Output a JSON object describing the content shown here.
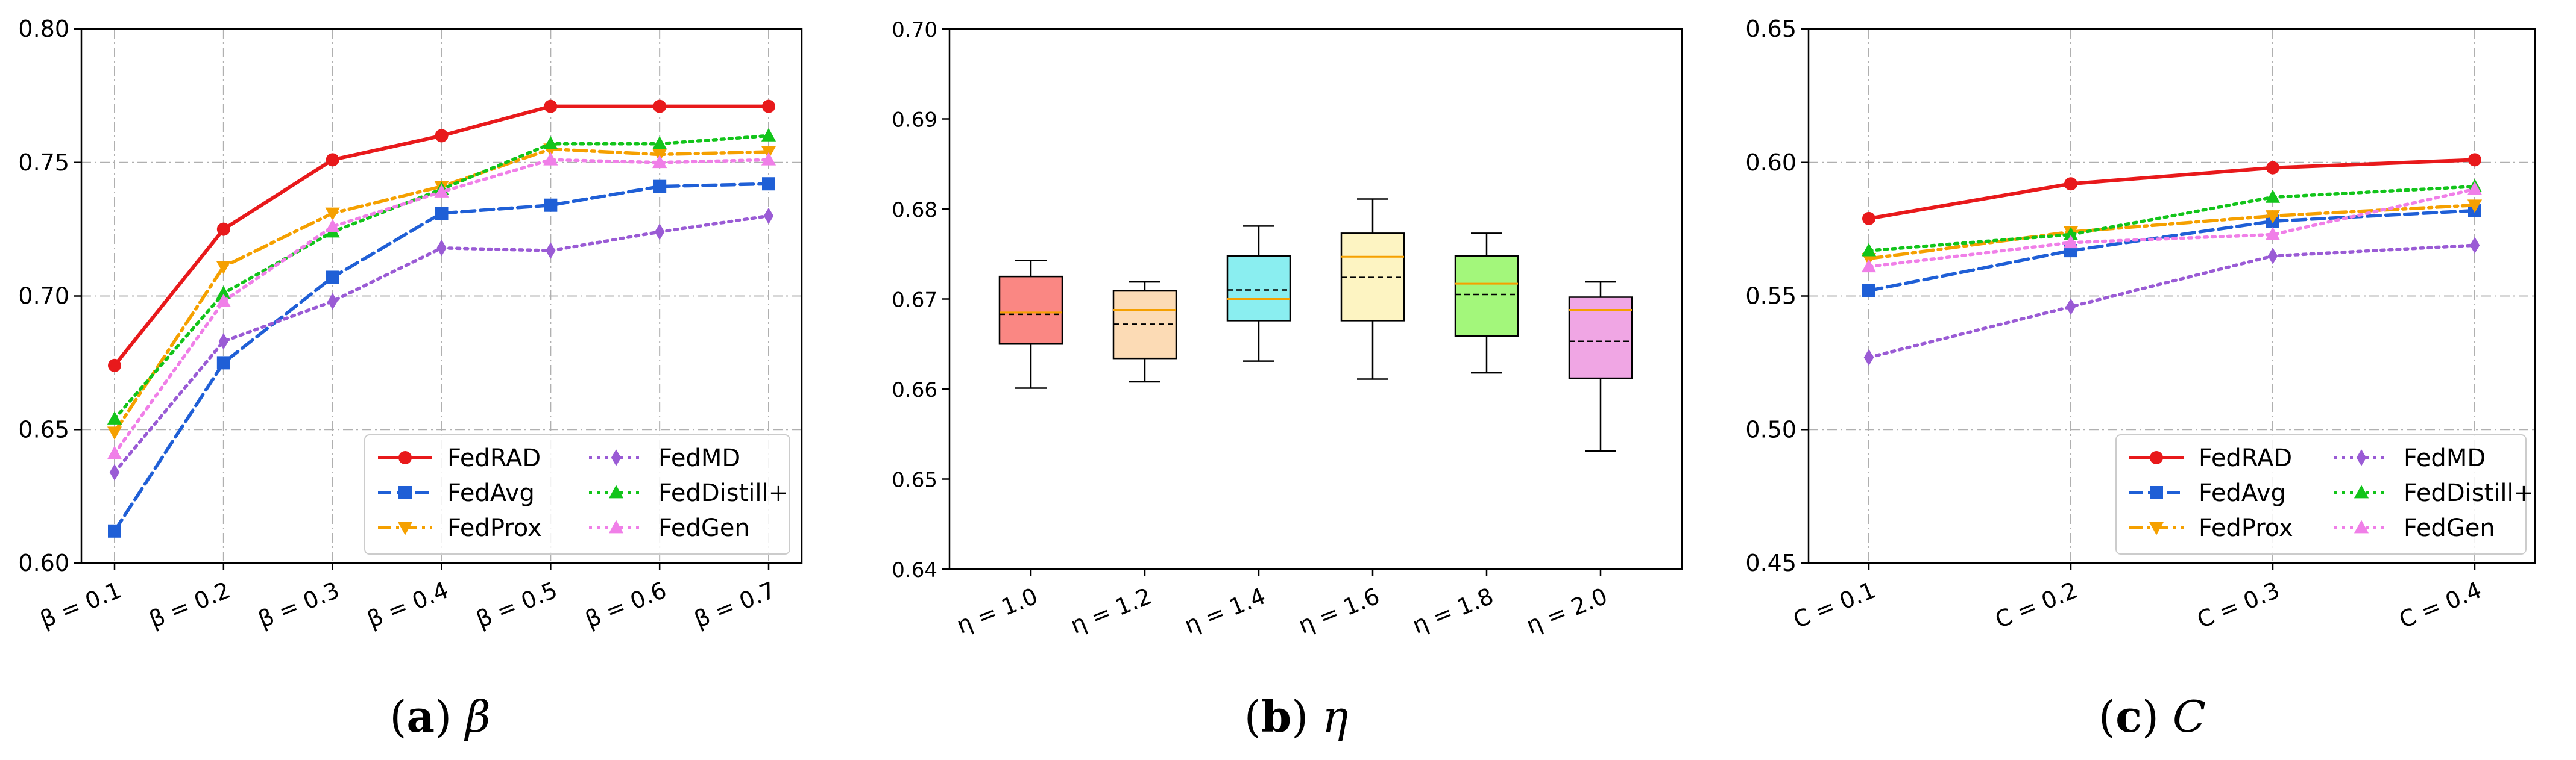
{
  "chart_data": [
    {
      "type": "line",
      "caption": {
        "letter": "a",
        "symbol": "β"
      },
      "categories": [
        "β = 0.1",
        "β = 0.2",
        "β = 0.3",
        "β = 0.4",
        "β = 0.5",
        "β = 0.6",
        "β = 0.7"
      ],
      "ylim": [
        0.6,
        0.8
      ],
      "yticks": [
        "0.60",
        "0.65",
        "0.70",
        "0.75",
        "0.80"
      ],
      "grid": true,
      "legend_position": "lower-right",
      "series": [
        {
          "name": "FedRAD",
          "color": "#e8191b",
          "marker": "circle",
          "dash": "solid",
          "values": [
            0.674,
            0.725,
            0.751,
            0.76,
            0.771,
            0.771,
            0.771
          ]
        },
        {
          "name": "FedAvg",
          "color": "#1f5fd6",
          "marker": "square",
          "dash": "dashed",
          "values": [
            0.612,
            0.675,
            0.707,
            0.731,
            0.734,
            0.741,
            0.742
          ]
        },
        {
          "name": "FedProx",
          "color": "#f5a000",
          "marker": "triangle-down",
          "dash": "dashdot",
          "values": [
            0.649,
            0.711,
            0.731,
            0.741,
            0.755,
            0.753,
            0.754
          ]
        },
        {
          "name": "FedMD",
          "color": "#9a5bd5",
          "marker": "diamond",
          "dash": "dotted",
          "values": [
            0.634,
            0.683,
            0.698,
            0.718,
            0.717,
            0.724,
            0.73
          ]
        },
        {
          "name": "FedDistill+",
          "color": "#12c41a",
          "marker": "triangle-up",
          "dash": "dotted",
          "values": [
            0.654,
            0.701,
            0.724,
            0.74,
            0.757,
            0.757,
            0.76
          ]
        },
        {
          "name": "FedGen",
          "color": "#f07fe8",
          "marker": "triangle-up",
          "dash": "dotted",
          "values": [
            0.641,
            0.698,
            0.726,
            0.739,
            0.751,
            0.75,
            0.751
          ]
        }
      ]
    },
    {
      "type": "box",
      "caption": {
        "letter": "b",
        "symbol": "η"
      },
      "categories": [
        "η = 1.0",
        "η = 1.2",
        "η = 1.4",
        "η = 1.6",
        "η = 1.8",
        "η = 2.0"
      ],
      "ylim": [
        0.64,
        0.7
      ],
      "yticks": [
        "0.64",
        "0.65",
        "0.66",
        "0.67",
        "0.68",
        "0.69",
        "0.70"
      ],
      "grid": false,
      "boxes": [
        {
          "label": "η = 1.0",
          "color": "#fa8783",
          "whisker_low": 0.6601,
          "q1": 0.665,
          "median": 0.6685,
          "mean": 0.6683,
          "q3": 0.6725,
          "whisker_high": 0.6743
        },
        {
          "label": "η = 1.2",
          "color": "#fcdbb5",
          "whisker_low": 0.6608,
          "q1": 0.6634,
          "median": 0.6688,
          "mean": 0.6672,
          "q3": 0.6709,
          "whisker_high": 0.6719
        },
        {
          "label": "η = 1.4",
          "color": "#8aeef0",
          "whisker_low": 0.6631,
          "q1": 0.6676,
          "median": 0.67,
          "mean": 0.671,
          "q3": 0.6748,
          "whisker_high": 0.6781
        },
        {
          "label": "η = 1.6",
          "color": "#fdf4c2",
          "whisker_low": 0.6611,
          "q1": 0.6676,
          "median": 0.6747,
          "mean": 0.6724,
          "q3": 0.6773,
          "whisker_high": 0.6811
        },
        {
          "label": "η = 1.8",
          "color": "#a3f77b",
          "whisker_low": 0.6618,
          "q1": 0.6659,
          "median": 0.6717,
          "mean": 0.6705,
          "q3": 0.6748,
          "whisker_high": 0.6773
        },
        {
          "label": "η = 2.0",
          "color": "#f0a6e4",
          "whisker_low": 0.6531,
          "q1": 0.6612,
          "median": 0.6688,
          "mean": 0.6653,
          "q3": 0.6702,
          "whisker_high": 0.6719
        }
      ],
      "median_color": "#f5a000",
      "mean_line": "dashed-black"
    },
    {
      "type": "line",
      "caption": {
        "letter": "c",
        "symbol": "C"
      },
      "categories": [
        "C = 0.1",
        "C = 0.2",
        "C = 0.3",
        "C = 0.4"
      ],
      "ylim": [
        0.45,
        0.65
      ],
      "yticks": [
        "0.45",
        "0.50",
        "0.55",
        "0.60",
        "0.65"
      ],
      "grid": true,
      "legend_position": "lower-right",
      "series": [
        {
          "name": "FedRAD",
          "color": "#e8191b",
          "marker": "circle",
          "dash": "solid",
          "values": [
            0.579,
            0.592,
            0.598,
            0.601
          ]
        },
        {
          "name": "FedAvg",
          "color": "#1f5fd6",
          "marker": "square",
          "dash": "dashed",
          "values": [
            0.552,
            0.567,
            0.578,
            0.582
          ]
        },
        {
          "name": "FedProx",
          "color": "#f5a000",
          "marker": "triangle-down",
          "dash": "dashdot",
          "values": [
            0.564,
            0.574,
            0.58,
            0.584
          ]
        },
        {
          "name": "FedMD",
          "color": "#9a5bd5",
          "marker": "diamond",
          "dash": "dotted",
          "values": [
            0.527,
            0.546,
            0.565,
            0.569
          ]
        },
        {
          "name": "FedDistill+",
          "color": "#12c41a",
          "marker": "triangle-up",
          "dash": "dotted",
          "values": [
            0.567,
            0.573,
            0.587,
            0.591
          ]
        },
        {
          "name": "FedGen",
          "color": "#f07fe8",
          "marker": "triangle-up",
          "dash": "dotted",
          "values": [
            0.561,
            0.57,
            0.573,
            0.59
          ]
        }
      ]
    }
  ]
}
